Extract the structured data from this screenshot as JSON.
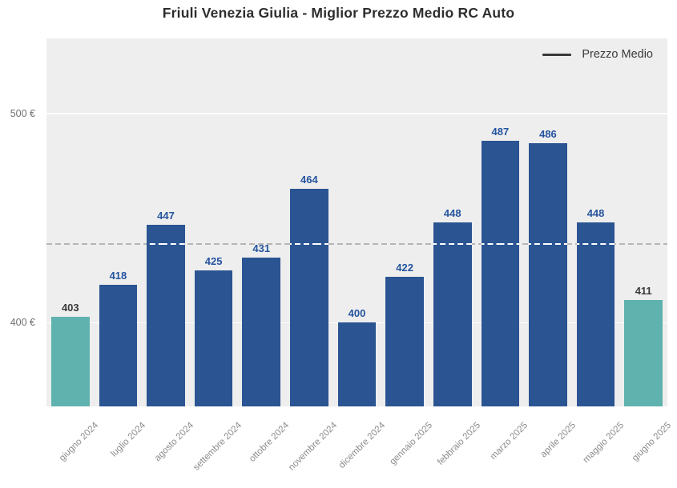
{
  "title": "Friuli Venezia Giulia - Miglior Prezzo Medio RC Auto",
  "legend": {
    "label": "Prezzo Medio"
  },
  "chart_data": {
    "type": "bar",
    "title": "Friuli Venezia Giulia - Miglior Prezzo Medio RC Auto",
    "xlabel": "",
    "ylabel": "",
    "categories": [
      "giugno 2024",
      "luglio 2024",
      "agosto 2024",
      "settembre 2024",
      "ottobre 2024",
      "novembre 2024",
      "dicembre 2024",
      "gennaio 2025",
      "febbraio 2025",
      "marzo 2025",
      "aprile 2025",
      "maggio 2025",
      "giugno 2025"
    ],
    "values": [
      403,
      418,
      447,
      425,
      431,
      464,
      400,
      422,
      448,
      487,
      486,
      448,
      411
    ],
    "highlight_indices": [
      0,
      12
    ],
    "average_line": {
      "style": "dashed",
      "value": 437.69,
      "label": "Prezzo Medio"
    },
    "ylim": [
      360,
      536
    ],
    "yticks": [
      {
        "value": 400,
        "label": "400 €"
      },
      {
        "value": 500,
        "label": "500 €"
      }
    ],
    "grid": true,
    "legend_position": "top-right",
    "colors": {
      "bar": "#2a5492",
      "bar_highlight": "#5fb2ad",
      "bar_label": "#24549e",
      "bar_label_highlight": "#3a3a3a",
      "plot_background": "#eeeeee",
      "grid_line": "#ffffff",
      "average_line_background": "#b5b5b5",
      "average_line_on_bars": "#ffffff",
      "y_tick_text": "#707070",
      "x_tick_text": "#8c8c8c",
      "legend_line": "#3a3a3a",
      "title_text": "#2d2d2d"
    }
  }
}
